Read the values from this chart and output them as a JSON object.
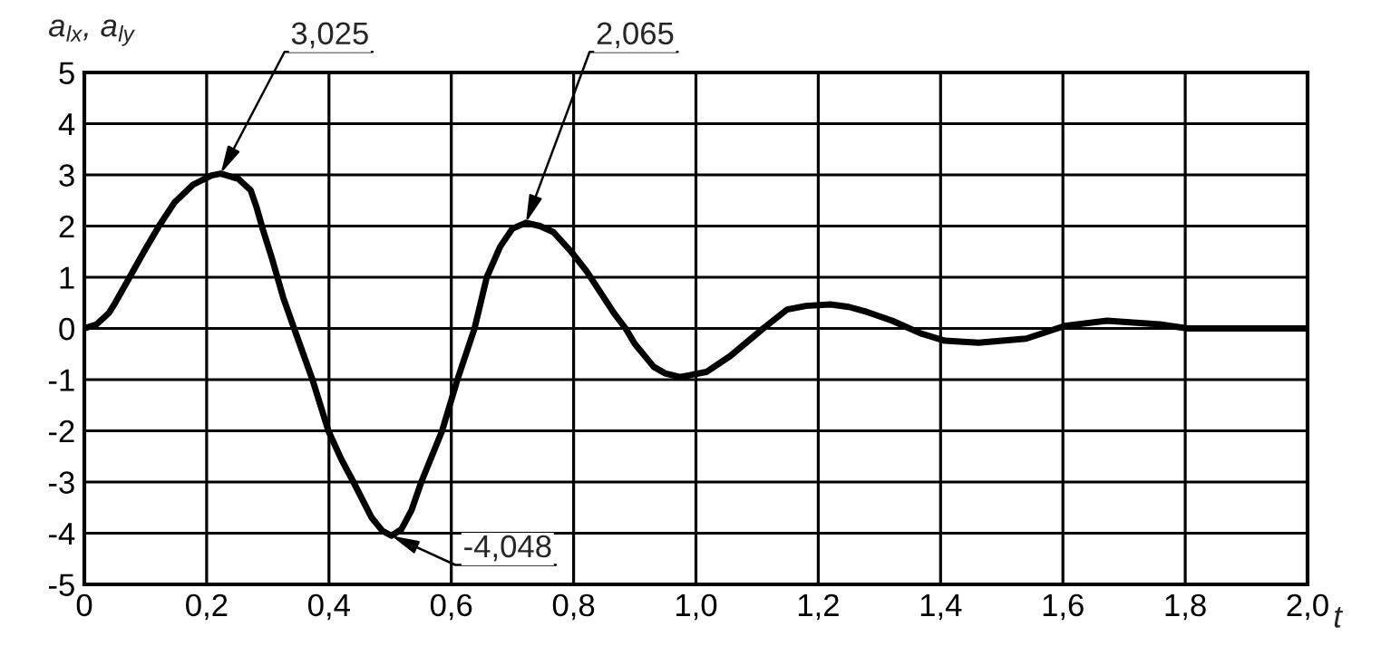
{
  "chart_data": {
    "type": "line",
    "xlabel": "t",
    "ylabel": "a$_{lx}$, a$_{ly}$",
    "x": [
      0,
      0.02,
      0.04,
      0.05,
      0.074,
      0.099,
      0.122,
      0.148,
      0.178,
      0.208,
      0.223,
      0.252,
      0.272,
      0.282,
      0.292,
      0.307,
      0.325,
      0.343,
      0.373,
      0.399,
      0.42,
      0.44,
      0.47,
      0.487,
      0.502,
      0.518,
      0.535,
      0.551,
      0.585,
      0.61,
      0.638,
      0.658,
      0.68,
      0.7,
      0.722,
      0.745,
      0.767,
      0.796,
      0.821,
      0.866,
      0.885,
      0.9,
      0.931,
      0.95,
      0.974,
      1.017,
      1.056,
      1.11,
      1.149,
      1.18,
      1.22,
      1.25,
      1.275,
      1.321,
      1.368,
      1.407,
      1.462,
      1.54,
      1.603,
      1.672,
      1.758,
      1.804,
      2.0
    ],
    "series": [
      {
        "color": "#000000",
        "values": [
          0,
          0.08,
          0.3,
          0.49,
          1.0,
          1.53,
          2.0,
          2.47,
          2.81,
          2.99,
          3.025,
          2.92,
          2.7,
          2.35,
          1.93,
          1.36,
          0.61,
          0.0,
          -1.0,
          -2.0,
          -2.55,
          -3.0,
          -3.7,
          -3.95,
          -4.048,
          -3.93,
          -3.55,
          -3.0,
          -2.0,
          -1.0,
          0.0,
          1.0,
          1.6,
          1.95,
          2.065,
          2.0,
          1.88,
          1.5,
          1.12,
          0.3,
          0.0,
          -0.3,
          -0.75,
          -0.88,
          -0.95,
          -0.85,
          -0.54,
          0.0,
          0.37,
          0.44,
          0.47,
          0.42,
          0.34,
          0.15,
          -0.1,
          -0.24,
          -0.28,
          -0.2,
          0.05,
          0.15,
          0.08,
          0.0,
          0.0
        ]
      }
    ],
    "xlim": [
      0,
      2.0
    ],
    "ylim": [
      -5,
      5
    ],
    "xticks": [
      0,
      {
        "value": 0.2,
        "label": "0,2"
      },
      {
        "value": 0.4,
        "label": "0,4"
      },
      {
        "value": 0.6,
        "label": "0,6"
      },
      {
        "value": 0.8,
        "label": "0,8"
      },
      {
        "value": 1.0,
        "label": "1,0"
      },
      {
        "value": 1.2,
        "label": "1,2"
      },
      {
        "value": 1.4,
        "label": "1,4"
      },
      {
        "value": 1.6,
        "label": "1,6"
      },
      {
        "value": 1.8,
        "label": "1,8"
      },
      {
        "value": 2.0,
        "label": "2,0"
      }
    ],
    "yticks": [
      -5,
      -4,
      -3,
      -2,
      -1,
      0,
      1,
      2,
      3,
      4,
      5
    ],
    "grid": true,
    "line_style": "solid",
    "annotations": [
      {
        "text": "3,025",
        "x": 0.223,
        "y": 3.025
      },
      {
        "text": "2,065",
        "x": 0.722,
        "y": 2.065
      },
      {
        "text": "-4,048",
        "x": 0.502,
        "y": -4.048
      }
    ]
  }
}
